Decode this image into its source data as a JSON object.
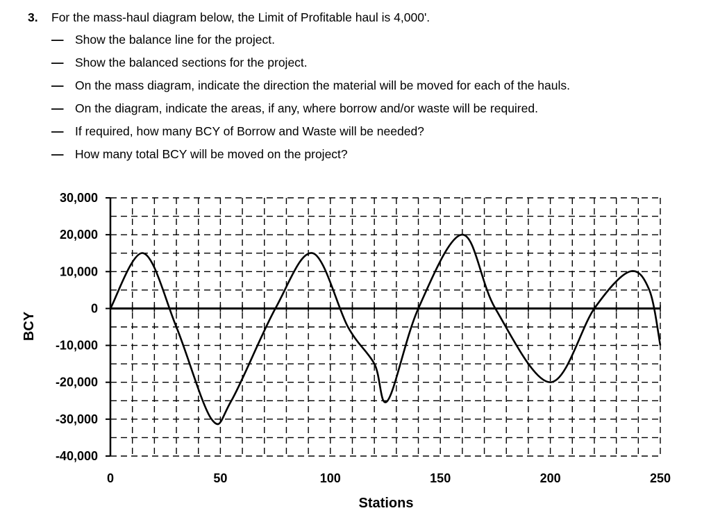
{
  "question": {
    "number": "3.",
    "prompt": "For the mass-haul diagram below, the Limit of Profitable haul is 4,000'.",
    "bullets": [
      "Show the balance line for the project.",
      "Show the balanced sections for the project.",
      "On the mass diagram, indicate the direction the material will be moved for each of the hauls.",
      "On the diagram, indicate the areas, if any, where borrow and/or waste will be required.",
      "If required, how many BCY of Borrow and Waste will be needed?",
      "How many total BCY will be moved on the project?"
    ],
    "bullet_marker": "—"
  },
  "chart_data": {
    "type": "line",
    "title": "",
    "xlabel": "Stations",
    "ylabel": "BCY",
    "xlim": [
      0,
      250
    ],
    "ylim": [
      -40000,
      30000
    ],
    "x_ticks": [
      0,
      50,
      100,
      150,
      200,
      250
    ],
    "x_tick_labels": [
      "0",
      "50",
      "100",
      "150",
      "200",
      "250"
    ],
    "y_ticks": [
      30000,
      20000,
      10000,
      0,
      -10000,
      -20000,
      -30000,
      -40000
    ],
    "y_tick_labels": [
      "30,000",
      "20,000",
      "10,000",
      "0",
      "-10,000",
      "-20,000",
      "-30,000",
      "-40,000"
    ],
    "grid": "dashed",
    "series": [
      {
        "x": [
          0,
          15,
          30,
          46,
          55,
          75,
          92,
          108,
          120,
          126,
          140,
          160,
          175,
          200,
          220,
          236,
          245,
          250
        ],
        "y": [
          0,
          15000,
          -5000,
          -30000,
          -25000,
          0,
          15000,
          -5000,
          -15000,
          -25000,
          0,
          20000,
          0,
          -20000,
          0,
          10000,
          5000,
          -10000
        ]
      }
    ]
  }
}
